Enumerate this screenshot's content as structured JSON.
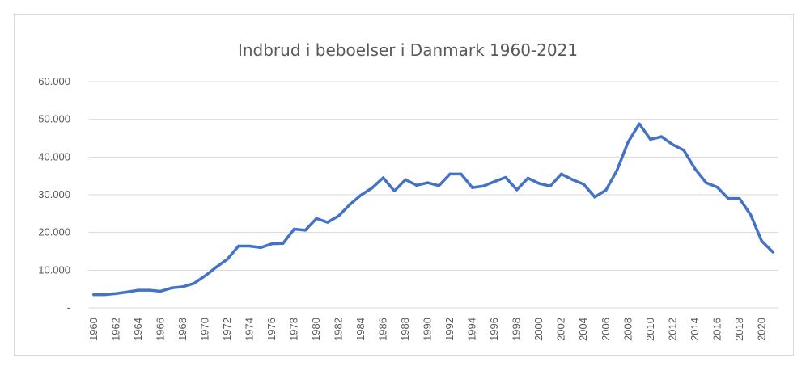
{
  "chart_data": {
    "type": "line",
    "title": "Indbrud i beboelser i Danmark 1960-2021",
    "xlabel": "",
    "ylabel": "",
    "ylim": [
      0,
      60000
    ],
    "yticks": [
      {
        "value": 0,
        "label": "-"
      },
      {
        "value": 10000,
        "label": "10.000"
      },
      {
        "value": 20000,
        "label": "20.000"
      },
      {
        "value": 30000,
        "label": "30.000"
      },
      {
        "value": 40000,
        "label": "40.000"
      },
      {
        "value": 50000,
        "label": "50.000"
      },
      {
        "value": 60000,
        "label": "60.000"
      }
    ],
    "xticks": [
      1960,
      1962,
      1964,
      1966,
      1968,
      1970,
      1972,
      1974,
      1976,
      1978,
      1980,
      1982,
      1984,
      1986,
      1988,
      1990,
      1992,
      1994,
      1996,
      1998,
      2000,
      2002,
      2004,
      2006,
      2008,
      2010,
      2012,
      2014,
      2016,
      2018,
      2020
    ],
    "grid": "horizontal",
    "line_color": "#4472c4",
    "x": [
      1960,
      1961,
      1962,
      1963,
      1964,
      1965,
      1966,
      1967,
      1968,
      1969,
      1970,
      1971,
      1972,
      1973,
      1974,
      1975,
      1976,
      1977,
      1978,
      1979,
      1980,
      1981,
      1982,
      1983,
      1984,
      1985,
      1986,
      1987,
      1988,
      1989,
      1990,
      1991,
      1992,
      1993,
      1994,
      1995,
      1996,
      1997,
      1998,
      1999,
      2000,
      2001,
      2002,
      2003,
      2004,
      2005,
      2006,
      2007,
      2008,
      2009,
      2010,
      2011,
      2012,
      2013,
      2014,
      2015,
      2016,
      2017,
      2018,
      2019,
      2020,
      2021
    ],
    "series": [
      {
        "values": [
          3500,
          3500,
          3800,
          4200,
          4700,
          4700,
          4400,
          5300,
          5600,
          6500,
          8500,
          10800,
          12900,
          16400,
          16400,
          16000,
          17000,
          17100,
          20900,
          20600,
          23700,
          22700,
          24400,
          27400,
          29900,
          31800,
          34500,
          31000,
          34000,
          32500,
          33200,
          32400,
          35500,
          35500,
          31900,
          32300,
          33500,
          34600,
          31300,
          34400,
          33000,
          32300,
          35500,
          34000,
          32800,
          29400,
          31200,
          36500,
          44000,
          48800,
          44700,
          45400,
          43300,
          41800,
          36900,
          33200,
          32000,
          29000,
          29000,
          24700,
          17700,
          14800
        ]
      }
    ]
  }
}
